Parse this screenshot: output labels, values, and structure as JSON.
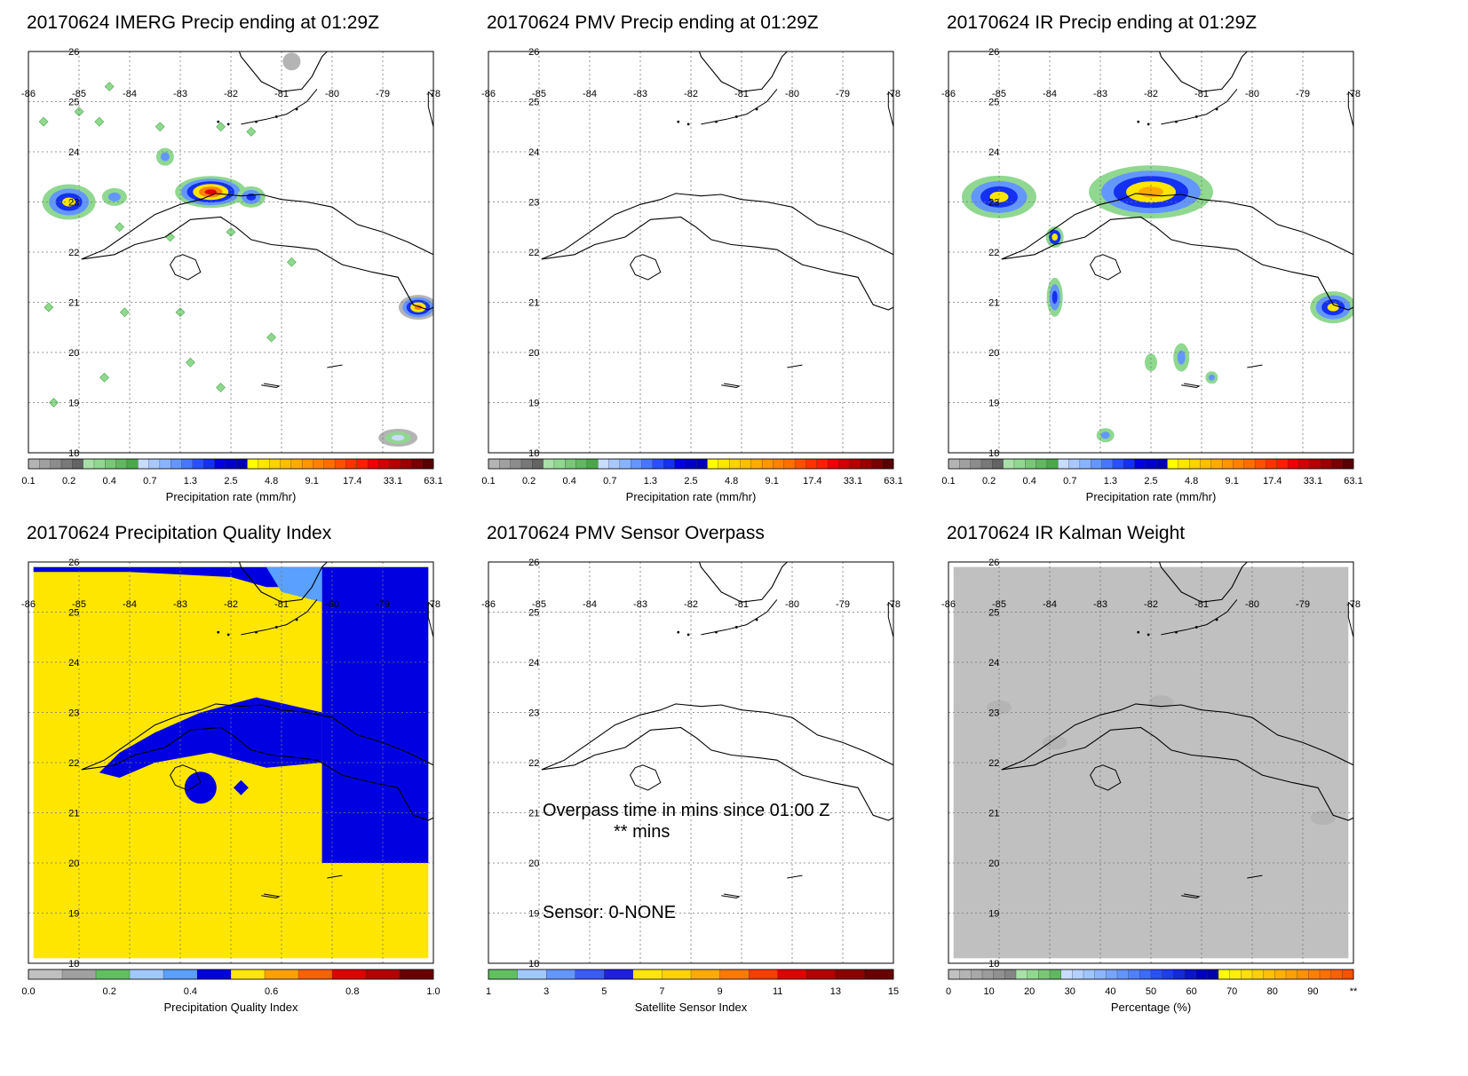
{
  "lon_labels": [
    "-86",
    "-85",
    "-84",
    "-83",
    "-82",
    "-81",
    "-80",
    "-79",
    "-78"
  ],
  "lat_labels": [
    "26",
    "25",
    "24",
    "23",
    "22",
    "21",
    "20",
    "19",
    "18"
  ],
  "panels": [
    {
      "id": "imerg",
      "title": "20170624 IMERG Precip ending at 01:29Z",
      "colorbar_label": "Precipitation rate (mm/hr)",
      "colorbar_ticks": [
        "0.1",
        "0.2",
        "0.4",
        "0.7",
        "1.3",
        "2.5",
        "4.8",
        "9.1",
        "17.4",
        "33.1",
        "63.1"
      ],
      "colorbar_colors": [
        "#b4b4b4",
        "#a0a0a0",
        "#8c8c8c",
        "#787878",
        "#646464",
        "#a8e0a8",
        "#90d890",
        "#78c878",
        "#60b860",
        "#48a848",
        "#c8dcff",
        "#a8c8ff",
        "#88b4ff",
        "#6496ff",
        "#4678ff",
        "#2850ff",
        "#1430f0",
        "#0000e0",
        "#0000c8",
        "#0000b4",
        "#ffff00",
        "#ffe600",
        "#ffd200",
        "#ffbe00",
        "#ffaa00",
        "#ff9600",
        "#ff8200",
        "#ff6e00",
        "#ff5000",
        "#ff3200",
        "#ff1e00",
        "#f00000",
        "#d20000",
        "#b40000",
        "#960000",
        "#780000",
        "#5a0000"
      ]
    },
    {
      "id": "pmv",
      "title": "20170624 PMV Precip ending at 01:29Z",
      "colorbar_label": "Precipitation rate (mm/hr)",
      "colorbar_ticks": [
        "0.1",
        "0.2",
        "0.4",
        "0.7",
        "1.3",
        "2.5",
        "4.8",
        "9.1",
        "17.4",
        "33.1",
        "63.1"
      ]
    },
    {
      "id": "ir",
      "title": "20170624 IR Precip ending at 01:29Z",
      "colorbar_label": "Precipitation rate (mm/hr)",
      "colorbar_ticks": [
        "0.1",
        "0.2",
        "0.4",
        "0.7",
        "1.3",
        "2.5",
        "4.8",
        "9.1",
        "17.4",
        "33.1",
        "63.1"
      ]
    },
    {
      "id": "pqi",
      "title": "20170624 Precipitation Quality Index",
      "colorbar_label": "Precipitation Quality Index",
      "colorbar_ticks": [
        "0.0",
        "0.2",
        "0.4",
        "0.6",
        "0.8",
        "1.0"
      ],
      "colorbar_colors": [
        "#c0c0c0",
        "#a0a0a0",
        "#60c060",
        "#a0c8ff",
        "#5aa0ff",
        "#0000e0",
        "#ffe600",
        "#ffa000",
        "#ff6000",
        "#e00000",
        "#b40000",
        "#6a0000"
      ]
    },
    {
      "id": "sensor",
      "title": "20170624 PMV Sensor Overpass",
      "colorbar_label": "Satellite Sensor Index",
      "colorbar_ticks": [
        "1",
        "3",
        "5",
        "7",
        "9",
        "11",
        "13",
        "15"
      ],
      "colorbar_colors": [
        "#60c060",
        "#a0c8ff",
        "#6496ff",
        "#3c5aff",
        "#1e1ee6",
        "#ffe600",
        "#ffd200",
        "#ffaa00",
        "#ff7800",
        "#ff3c00",
        "#e00000",
        "#b40000",
        "#8c0000",
        "#6a0000"
      ],
      "overpass_text": "Overpass time in mins since 01:00 Z",
      "overpass_value": "** mins",
      "sensor_text": "Sensor:   0-NONE"
    },
    {
      "id": "kalman",
      "title": "20170624 IR Kalman Weight",
      "colorbar_label": "Percentage (%)",
      "colorbar_ticks": [
        "0",
        "10",
        "20",
        "30",
        "40",
        "50",
        "60",
        "70",
        "80",
        "90",
        "**"
      ],
      "colorbar_colors": [
        "#c0c0c0",
        "#b4b4b4",
        "#a8a8a8",
        "#9c9c9c",
        "#909090",
        "#848484",
        "#a8e0a8",
        "#90d890",
        "#78c878",
        "#60b860",
        "#c8dcff",
        "#b4d0ff",
        "#a0c4ff",
        "#8cb4ff",
        "#78a4ff",
        "#6494ff",
        "#5080ff",
        "#3c6cff",
        "#2850ff",
        "#1e3cf0",
        "#1428e0",
        "#0a14d0",
        "#0000c0",
        "#0000b0",
        "#ffff00",
        "#fff000",
        "#ffe000",
        "#ffd000",
        "#ffc000",
        "#ffb000",
        "#ffa000",
        "#ff9000",
        "#ff8000",
        "#ff7000",
        "#ff6000",
        "#ff5000"
      ]
    }
  ]
}
